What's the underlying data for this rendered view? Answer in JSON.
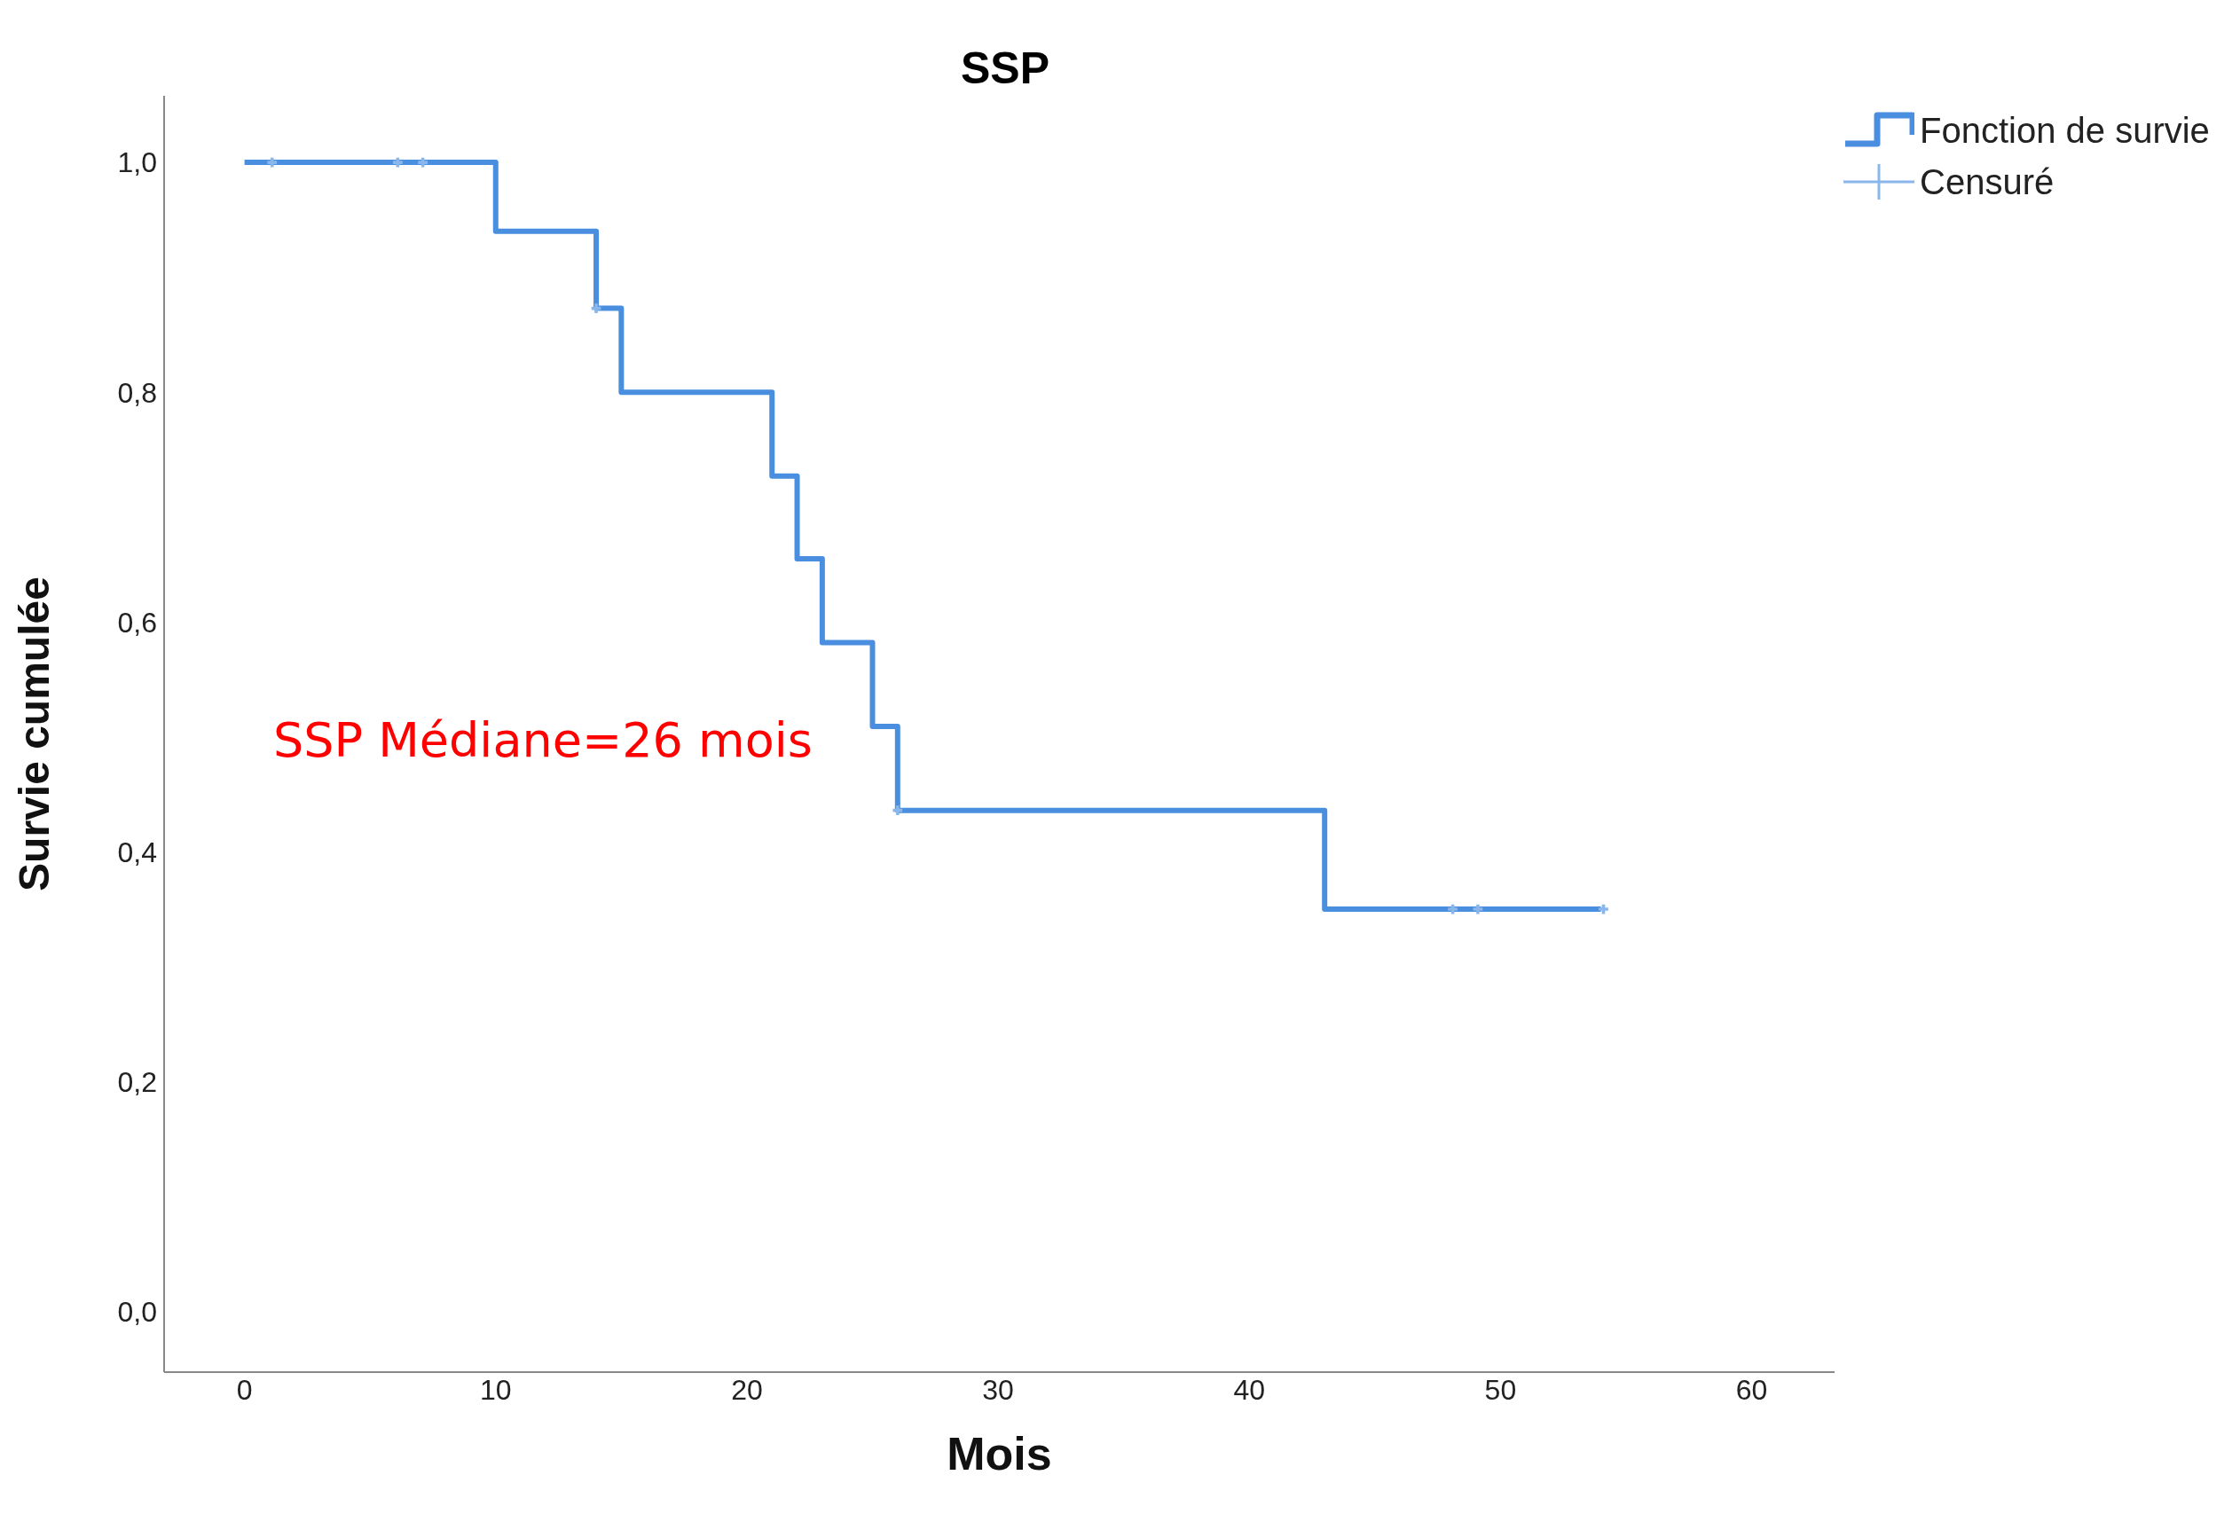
{
  "chart_data": {
    "type": "step",
    "title": "SSP",
    "xlabel": "Mois",
    "ylabel": "Survie cumulée",
    "xlim": [
      -3.2,
      63.3
    ],
    "xticks": [
      0,
      10,
      20,
      30,
      40,
      50,
      60
    ],
    "ylim": [
      -0.053,
      1.058
    ],
    "yticks": [
      {
        "value": 0,
        "label": "0,0"
      },
      {
        "value": 0.2,
        "label": "0,2"
      },
      {
        "value": 0.4,
        "label": "0,4"
      },
      {
        "value": 0.6,
        "label": "0,6"
      },
      {
        "value": 0.8,
        "label": "0,8"
      },
      {
        "value": 1,
        "label": "1,0"
      }
    ],
    "grid": false,
    "legend": "top right",
    "line_style": "solid",
    "annotations": [
      "SSP Médiane=26 mois"
    ],
    "series": [
      {
        "name": "Fonction de survie",
        "color": "#4a8ee0",
        "marker": "none",
        "x": [
          0,
          10,
          14,
          15,
          21,
          22,
          23,
          25,
          26,
          43,
          54
        ],
        "values": [
          1,
          0.94,
          0.873,
          0.8,
          0.727,
          0.655,
          0.582,
          0.509,
          0.436,
          0.35,
          0.35
        ]
      },
      {
        "type": "scatter",
        "name": "Censuré",
        "color": "#8ab6ec",
        "marker": "cross",
        "x": [
          1.1,
          6.1,
          7.1,
          14,
          26,
          48.1,
          49.1,
          54.1
        ],
        "values": [
          1,
          1,
          1,
          0.873,
          0.436,
          0.35,
          0.35,
          0.35
        ]
      }
    ]
  }
}
